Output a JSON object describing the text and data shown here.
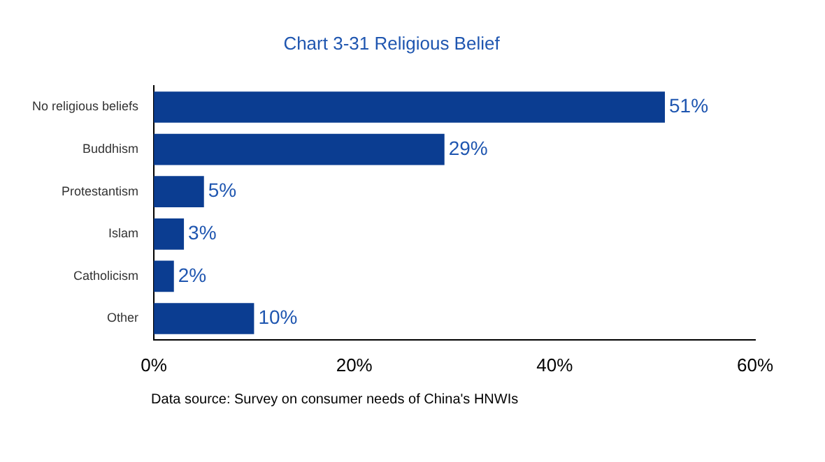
{
  "chart_data": {
    "type": "bar",
    "orientation": "horizontal",
    "title": "Chart 3-31 Religious Belief",
    "categories": [
      "No religious beliefs",
      "Buddhism",
      "Protestantism",
      "Islam",
      "Catholicism",
      "Other"
    ],
    "values": [
      51,
      29,
      5,
      3,
      2,
      10
    ],
    "value_labels": [
      "51%",
      "29%",
      "5%",
      "3%",
      "2%",
      "10%"
    ],
    "color": "#0b3d91",
    "xlim": [
      0,
      60
    ],
    "xticks": [
      {
        "value": 0,
        "label": "0%"
      },
      {
        "value": 20,
        "label": "20%"
      },
      {
        "value": 40,
        "label": "40%"
      },
      {
        "value": 60,
        "label": "60%"
      }
    ],
    "grid": false,
    "legend": false,
    "annotations": [
      "Data source: Survey on consumer needs of China's HNWIs"
    ]
  }
}
